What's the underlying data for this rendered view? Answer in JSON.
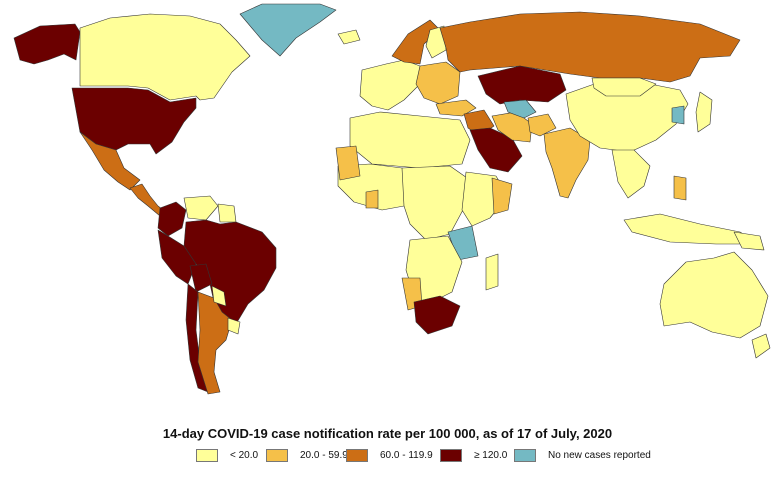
{
  "title": "14-day COVID-19 case notification rate per 100 000, as of 17 of July, 2020",
  "legend": [
    {
      "label": "< 20.0",
      "color": "#ffff99"
    },
    {
      "label": "20.0 - 59.9",
      "color": "#f5c049"
    },
    {
      "label": "60.0 - 119.9",
      "color": "#cc6e15"
    },
    {
      "label": "≥ 120.0",
      "color": "#6b0000"
    },
    {
      "label": "No new cases reported",
      "color": "#74b9c3"
    }
  ],
  "regions": [
    {
      "name": "Alaska (USA)",
      "class": 3
    },
    {
      "name": "Canada",
      "class": 0
    },
    {
      "name": "Greenland",
      "class": 4
    },
    {
      "name": "United States",
      "class": 3
    },
    {
      "name": "Mexico",
      "class": 2
    },
    {
      "name": "Central America",
      "class": 2
    },
    {
      "name": "Colombia",
      "class": 3
    },
    {
      "name": "Venezuela",
      "class": 0
    },
    {
      "name": "Guianas",
      "class": 0
    },
    {
      "name": "Brazil",
      "class": 3
    },
    {
      "name": "Peru",
      "class": 3
    },
    {
      "name": "Bolivia",
      "class": 3
    },
    {
      "name": "Chile",
      "class": 3
    },
    {
      "name": "Argentina",
      "class": 2
    },
    {
      "name": "Paraguay",
      "class": 0
    },
    {
      "name": "Uruguay",
      "class": 0
    },
    {
      "name": "Iceland",
      "class": 0
    },
    {
      "name": "Western Europe",
      "class": 0
    },
    {
      "name": "Scandinavia",
      "class": 2
    },
    {
      "name": "Finland",
      "class": 0
    },
    {
      "name": "Eastern Europe",
      "class": 1
    },
    {
      "name": "Russia",
      "class": 2
    },
    {
      "name": "Kazakhstan",
      "class": 3
    },
    {
      "name": "Turkey",
      "class": 1
    },
    {
      "name": "Middle East",
      "class": 2
    },
    {
      "name": "Saudi Arabia",
      "class": 3
    },
    {
      "name": "Iran",
      "class": 1
    },
    {
      "name": "Central Asia",
      "class": 4
    },
    {
      "name": "Afghanistan",
      "class": 1
    },
    {
      "name": "India",
      "class": 1
    },
    {
      "name": "China",
      "class": 0
    },
    {
      "name": "Mongolia",
      "class": 0
    },
    {
      "name": "Southeast Asia",
      "class": 0
    },
    {
      "name": "Japan",
      "class": 0
    },
    {
      "name": "Korea",
      "class": 4
    },
    {
      "name": "Philippines",
      "class": 1
    },
    {
      "name": "Indonesia",
      "class": 0
    },
    {
      "name": "Papua New Guinea",
      "class": 0
    },
    {
      "name": "Australia",
      "class": 0
    },
    {
      "name": "New Zealand",
      "class": 0
    },
    {
      "name": "North Africa",
      "class": 0
    },
    {
      "name": "West Africa",
      "class": 0
    },
    {
      "name": "Mauritania",
      "class": 1
    },
    {
      "name": "Ghana",
      "class": 1
    },
    {
      "name": "Central Africa",
      "class": 0
    },
    {
      "name": "East Africa",
      "class": 0
    },
    {
      "name": "Djibouti / Somalia",
      "class": 1
    },
    {
      "name": "Tanzania",
      "class": 4
    },
    {
      "name": "Southern Africa",
      "class": 0
    },
    {
      "name": "Namibia",
      "class": 1
    },
    {
      "name": "South Africa",
      "class": 3
    },
    {
      "name": "Madagascar",
      "class": 0
    }
  ]
}
